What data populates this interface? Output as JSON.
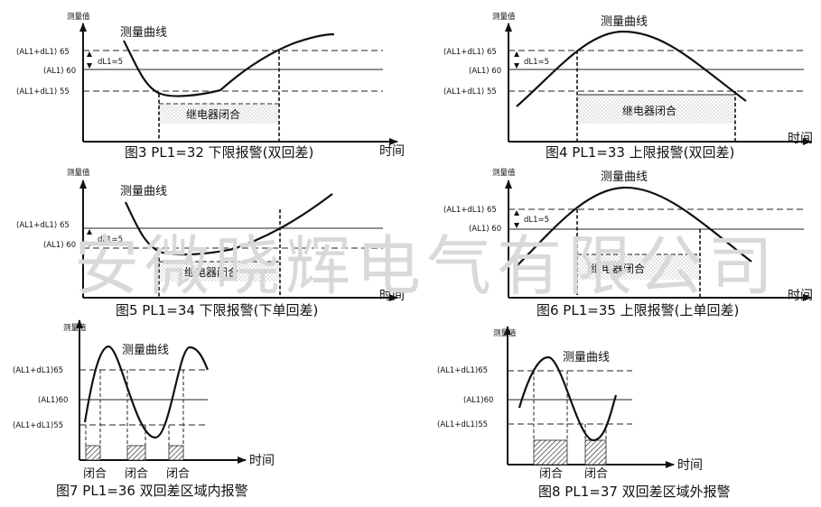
{
  "labels": {
    "y_axis": "测量值",
    "x_axis": "时间",
    "curve": "测量曲线",
    "relay": "继电器闭合",
    "closed": "闭合",
    "hi": "(AL1+dL1) 65",
    "mid": "(AL1) 60",
    "lo": "(AL1+dL1) 55",
    "hi_compact": "(AL1+dL1)65",
    "mid_compact": "(AL1)60",
    "lo_compact": "(AL1+dL1)55",
    "dl": "dL1=5"
  },
  "captions": {
    "fig3": "图3 PL1=32  下限报警(双回差)",
    "fig4": "图4 PL1=33  上限报警(双回差)",
    "fig5": "图5 PL1=34  下限报警(下单回差)",
    "fig6": "图6 PL1=35  上限报警(上单回差)",
    "fig7": "图7 PL1=36  双回差区域内报警",
    "fig8": "图8 PL1=37  双回差区域外报警"
  },
  "watermark": "安微晓辉电气有限公司"
}
